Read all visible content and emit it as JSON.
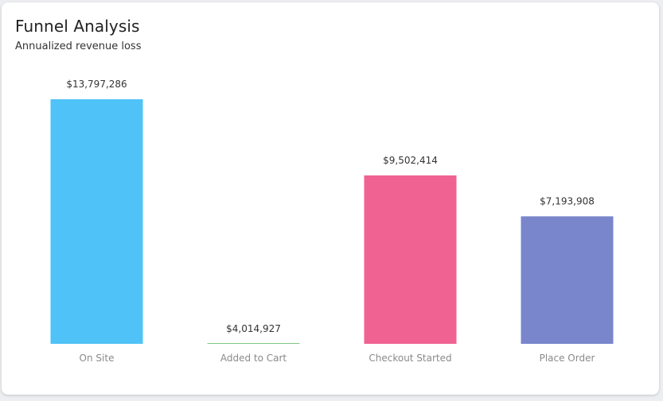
{
  "header": {
    "title": "Funnel Analysis",
    "subtitle": "Annualized revenue loss"
  },
  "chart_data": {
    "type": "bar",
    "categories": [
      "On Site",
      "Added to Cart",
      "Checkout Started",
      "Place Order"
    ],
    "values": [
      13797286,
      4014927,
      9502414,
      7193908
    ],
    "value_labels": [
      "$13,797,286",
      "$4,014,927",
      "$9,502,414",
      "$7,193,908"
    ],
    "colors": [
      "#4fc3f7",
      "#81c784",
      "#f06292",
      "#7986cb"
    ],
    "marker_values": [
      13797286,
      0,
      9502414,
      7193908
    ],
    "ylim": [
      0,
      13797286
    ],
    "grid": false,
    "legend": "none"
  }
}
